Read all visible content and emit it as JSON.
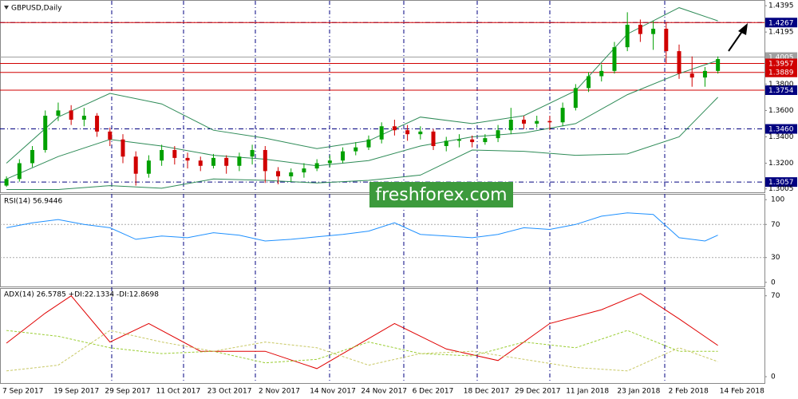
{
  "watermark": "freshforex.com",
  "chart_data": [
    {
      "type": "candlestick",
      "title": "GBPUSD,Daily",
      "open": [
        1.303,
        1.308,
        1.32,
        1.33,
        1.356,
        1.36,
        1.353,
        1.356,
        1.344,
        1.338,
        1.325,
        1.312,
        1.322,
        1.33,
        1.324,
        1.322,
        1.318,
        1.324,
        1.318,
        1.325,
        1.33,
        1.314,
        1.31,
        1.313,
        1.316,
        1.32,
        1.322,
        1.329,
        1.332,
        1.338,
        1.348,
        1.345,
        1.342,
        1.344,
        1.333,
        1.337,
        1.338,
        1.336,
        1.339,
        1.345,
        1.353,
        1.35,
        1.352,
        1.351,
        1.362,
        1.377,
        1.386,
        1.39,
        1.408,
        1.425,
        1.418,
        1.422,
        1.405,
        1.388,
        1.385,
        1.39
      ],
      "high": [
        1.31,
        1.323,
        1.333,
        1.36,
        1.366,
        1.364,
        1.362,
        1.358,
        1.347,
        1.342,
        1.329,
        1.326,
        1.334,
        1.333,
        1.328,
        1.325,
        1.327,
        1.326,
        1.328,
        1.334,
        1.333,
        1.317,
        1.316,
        1.32,
        1.323,
        1.326,
        1.332,
        1.336,
        1.341,
        1.351,
        1.353,
        1.349,
        1.348,
        1.346,
        1.34,
        1.342,
        1.341,
        1.342,
        1.349,
        1.362,
        1.356,
        1.356,
        1.356,
        1.366,
        1.38,
        1.389,
        1.395,
        1.412,
        1.4345,
        1.429,
        1.428,
        1.427,
        1.41,
        1.401,
        1.393,
        1.401
      ],
      "low": [
        1.302,
        1.306,
        1.317,
        1.328,
        1.352,
        1.349,
        1.348,
        1.34,
        1.333,
        1.32,
        1.303,
        1.309,
        1.318,
        1.319,
        1.316,
        1.314,
        1.316,
        1.312,
        1.314,
        1.319,
        1.305,
        1.304,
        1.306,
        1.309,
        1.314,
        1.317,
        1.32,
        1.326,
        1.33,
        1.335,
        1.341,
        1.337,
        1.338,
        1.33,
        1.329,
        1.332,
        1.332,
        1.334,
        1.336,
        1.342,
        1.346,
        1.347,
        1.345,
        1.348,
        1.36,
        1.374,
        1.382,
        1.388,
        1.405,
        1.412,
        1.406,
        1.396,
        1.384,
        1.378,
        1.378,
        1.388
      ],
      "close": [
        1.308,
        1.32,
        1.33,
        1.356,
        1.36,
        1.353,
        1.356,
        1.344,
        1.338,
        1.325,
        1.312,
        1.322,
        1.33,
        1.324,
        1.322,
        1.318,
        1.324,
        1.318,
        1.325,
        1.33,
        1.314,
        1.31,
        1.313,
        1.316,
        1.32,
        1.322,
        1.329,
        1.332,
        1.338,
        1.348,
        1.345,
        1.342,
        1.344,
        1.333,
        1.337,
        1.338,
        1.336,
        1.339,
        1.345,
        1.353,
        1.35,
        1.352,
        1.351,
        1.362,
        1.377,
        1.386,
        1.39,
        1.408,
        1.425,
        1.418,
        1.422,
        1.405,
        1.388,
        1.385,
        1.39,
        1.399
      ],
      "up_color": "#00a000",
      "down_color": "#d00000",
      "bands": {
        "color": "#2e8b57",
        "x": [
          0,
          4,
          8,
          12,
          16,
          20,
          24,
          28,
          32,
          36,
          40,
          44,
          48,
          52,
          55
        ],
        "upper": [
          1.32,
          1.355,
          1.373,
          1.365,
          1.345,
          1.339,
          1.331,
          1.337,
          1.355,
          1.35,
          1.356,
          1.375,
          1.418,
          1.438,
          1.428
        ],
        "middle": [
          1.308,
          1.325,
          1.338,
          1.333,
          1.326,
          1.323,
          1.318,
          1.322,
          1.333,
          1.34,
          1.343,
          1.35,
          1.372,
          1.388,
          1.398
        ],
        "lower": [
          1.3,
          1.3,
          1.303,
          1.301,
          1.308,
          1.307,
          1.305,
          1.307,
          1.311,
          1.33,
          1.329,
          1.326,
          1.327,
          1.34,
          1.37
        ]
      },
      "xlim": [
        -0.5,
        58.6
      ],
      "ylim": [
        1.2985,
        1.442
      ],
      "yticks": [
        1.4395,
        1.4195,
        {
          "value": 1.38,
          "label": "1.3800"
        },
        {
          "value": 1.36,
          "label": "1.3600"
        },
        {
          "value": 1.34,
          "label": "1.3400"
        },
        {
          "value": 1.32,
          "label": "1.3200"
        },
        1.3005
      ],
      "levels": [
        {
          "value": 1.4267,
          "color": "#000080",
          "dashed": true,
          "box": true
        },
        {
          "value": 1.4267,
          "color": "#d00000",
          "dashed": false,
          "box": false
        },
        {
          "value": 1.4005,
          "color": "#a0a0a0",
          "dashed": false,
          "box": true
        },
        {
          "value": 1.3957,
          "color": "#d00000",
          "dashed": false,
          "box": true
        },
        {
          "value": 1.3889,
          "color": "#d00000",
          "dashed": false,
          "box": true
        },
        {
          "value": 1.3754,
          "color": "#000080",
          "dashed": true,
          "box": true
        },
        {
          "value": 1.3754,
          "color": "#d00000",
          "dashed": false,
          "box": false
        },
        {
          "value": {
            "value": 1.346,
            "label": "1.3460"
          },
          "color": "#000080",
          "dashed": true,
          "box": true
        },
        {
          "value": 1.3057,
          "color": "#000080",
          "dashed": true,
          "box": true
        }
      ]
    },
    {
      "type": "line",
      "title": "RSI(14) 56.9446",
      "series": [
        {
          "color": "#1e90ff",
          "x": [
            0,
            2,
            4,
            6,
            8,
            10,
            12,
            14,
            16,
            18,
            20,
            22,
            24,
            26,
            28,
            30,
            32,
            34,
            36,
            38,
            40,
            42,
            44,
            46,
            48,
            50,
            52,
            54,
            55
          ],
          "values": [
            66,
            72,
            76,
            70,
            66,
            52,
            56,
            54,
            60,
            57,
            50,
            52,
            55,
            58,
            62,
            72,
            58,
            56,
            54,
            58,
            66,
            64,
            70,
            80,
            84,
            82,
            54,
            50,
            57
          ]
        }
      ],
      "xlim": [
        -0.5,
        58.6
      ],
      "ylim": [
        -5,
        105
      ],
      "yticks": [
        100,
        70,
        30,
        0
      ],
      "levels": [
        70,
        30
      ]
    },
    {
      "type": "line",
      "title": "ADX(14) 26.5785 +DI:22.1334 -DI:12.8698",
      "series": [
        {
          "color": "#e00000",
          "dashed": false,
          "x": [
            0,
            3,
            5,
            8,
            11,
            15,
            20,
            24,
            30,
            34,
            38,
            42,
            46,
            49,
            52,
            55
          ],
          "values": [
            29,
            55,
            70,
            30,
            46,
            22,
            22,
            7,
            46,
            24,
            14,
            46,
            58,
            72,
            50,
            27
          ]
        },
        {
          "color": "#9acd32",
          "dashed": true,
          "x": [
            0,
            4,
            8,
            12,
            16,
            20,
            24,
            28,
            32,
            36,
            40,
            44,
            48,
            52,
            55
          ],
          "values": [
            40,
            35,
            25,
            20,
            22,
            12,
            15,
            30,
            20,
            18,
            30,
            25,
            40,
            22,
            22
          ]
        },
        {
          "color": "#c8c864",
          "dashed": true,
          "x": [
            0,
            4,
            8,
            12,
            16,
            20,
            24,
            28,
            32,
            36,
            40,
            44,
            48,
            52,
            55
          ],
          "values": [
            5,
            10,
            40,
            30,
            22,
            30,
            25,
            10,
            20,
            22,
            15,
            8,
            5,
            25,
            13
          ]
        }
      ],
      "xlim": [
        -0.5,
        58.6
      ],
      "ylim": [
        -5.5,
        76
      ],
      "yticks": [
        70,
        0
      ],
      "categories": [
        "7 Sep 2017",
        "19 Sep 2017",
        "29 Sep 2017",
        "11 Oct 2017",
        "23 Oct 2017",
        "2 Nov 2017",
        "14 Nov 2017",
        "24 Nov 2017",
        "6 Dec 2017",
        "18 Dec 2017",
        "29 Dec 2017",
        "11 Jan 2018",
        "23 Jan 2018",
        "2 Feb 2018",
        "14 Feb 2018"
      ]
    }
  ]
}
